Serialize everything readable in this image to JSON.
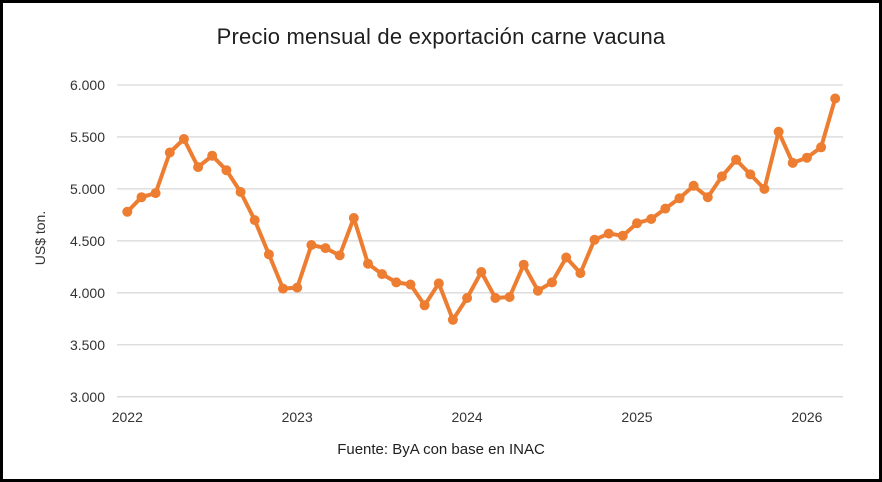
{
  "chart_data": {
    "type": "line",
    "title": "Precio mensual de exportación carne vacuna",
    "ylabel": "US$ ton.",
    "source_note": "Fuente: ByA con base en INAC",
    "x_axis": {
      "start": "2022-01",
      "end": "2026-03",
      "interval": "monthly"
    },
    "x_tick_labels": [
      "2022",
      "2023",
      "2024",
      "2025",
      "2026"
    ],
    "x_tick_month_indices": [
      0,
      12,
      24,
      36,
      48
    ],
    "y_tick_labels": [
      "3.000",
      "3.500",
      "4.000",
      "4.500",
      "5.000",
      "5.500",
      "6.000"
    ],
    "ylim": [
      3000,
      6000
    ],
    "y_tick_step": 500,
    "grid": "horizontal",
    "legend": "none",
    "line_color": "#ED7D31",
    "gridline_color": "#D9D9D9",
    "series": [
      {
        "name": "Precio mensual de exportación carne vacuna (US$/ton)",
        "values": [
          4780,
          4920,
          4960,
          5350,
          5480,
          5210,
          5320,
          5180,
          4970,
          4700,
          4370,
          4040,
          4050,
          4460,
          4430,
          4360,
          4720,
          4280,
          4180,
          4100,
          4080,
          3880,
          4090,
          3740,
          3950,
          4200,
          3950,
          3960,
          4270,
          4020,
          4100,
          4340,
          4190,
          4510,
          4570,
          4550,
          4670,
          4710,
          4810,
          4910,
          5030,
          4920,
          5120,
          5280,
          5140,
          5000,
          5550,
          5250,
          5300,
          5400,
          5870
        ]
      }
    ]
  }
}
